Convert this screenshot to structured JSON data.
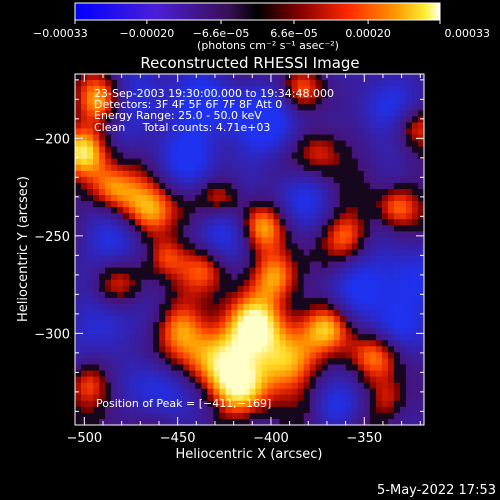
{
  "chart_data": {
    "type": "heatmap",
    "title": "Reconstructed RHESSI Image",
    "xlabel": "Heliocentric X (arcsec)",
    "ylabel": "Heliocentric Y (arcsec)",
    "xlim": [
      -505,
      -318
    ],
    "ylim": [
      -347,
      -167
    ],
    "xticks": [
      -500,
      -450,
      -400,
      -350
    ],
    "yticks": [
      -200,
      -250,
      -300
    ],
    "xtick_labels": [
      "−500",
      "−450",
      "−400",
      "−350"
    ],
    "ytick_labels": [
      "−200",
      "−250",
      "−300"
    ],
    "colorbar": {
      "range": [
        -0.00033,
        0.00033
      ],
      "ticks": [
        -0.00033,
        -0.0002,
        -6.6e-05,
        6.6e-05,
        0.0002,
        0.00033
      ],
      "tick_labels": [
        "−0.00033",
        "−0.00020",
        "−6.6e−05",
        "6.6e−05",
        "0.00020",
        "0.00033"
      ],
      "unit_label": "(photons cm⁻² s⁻¹ asec⁻²)"
    },
    "annotations": [
      "23-Sep-2003 19:30:00.000 to 19:34:48.000",
      "Detectors: 3F 4F 5F 6F 7F 8F Att 0",
      "Energy Range: 25.0 - 50.0 keV",
      "Clean     Total counts: 4.71e+03"
    ],
    "peak_label": "Position of Peak = [−411,−169]",
    "peak": [
      -411,
      -169
    ],
    "timestamp": "5-May-2022 17:53",
    "colors": {
      "low": "#0000ff",
      "mid": "#000000",
      "high": "#ffffff",
      "frame": "#ffffff"
    }
  }
}
